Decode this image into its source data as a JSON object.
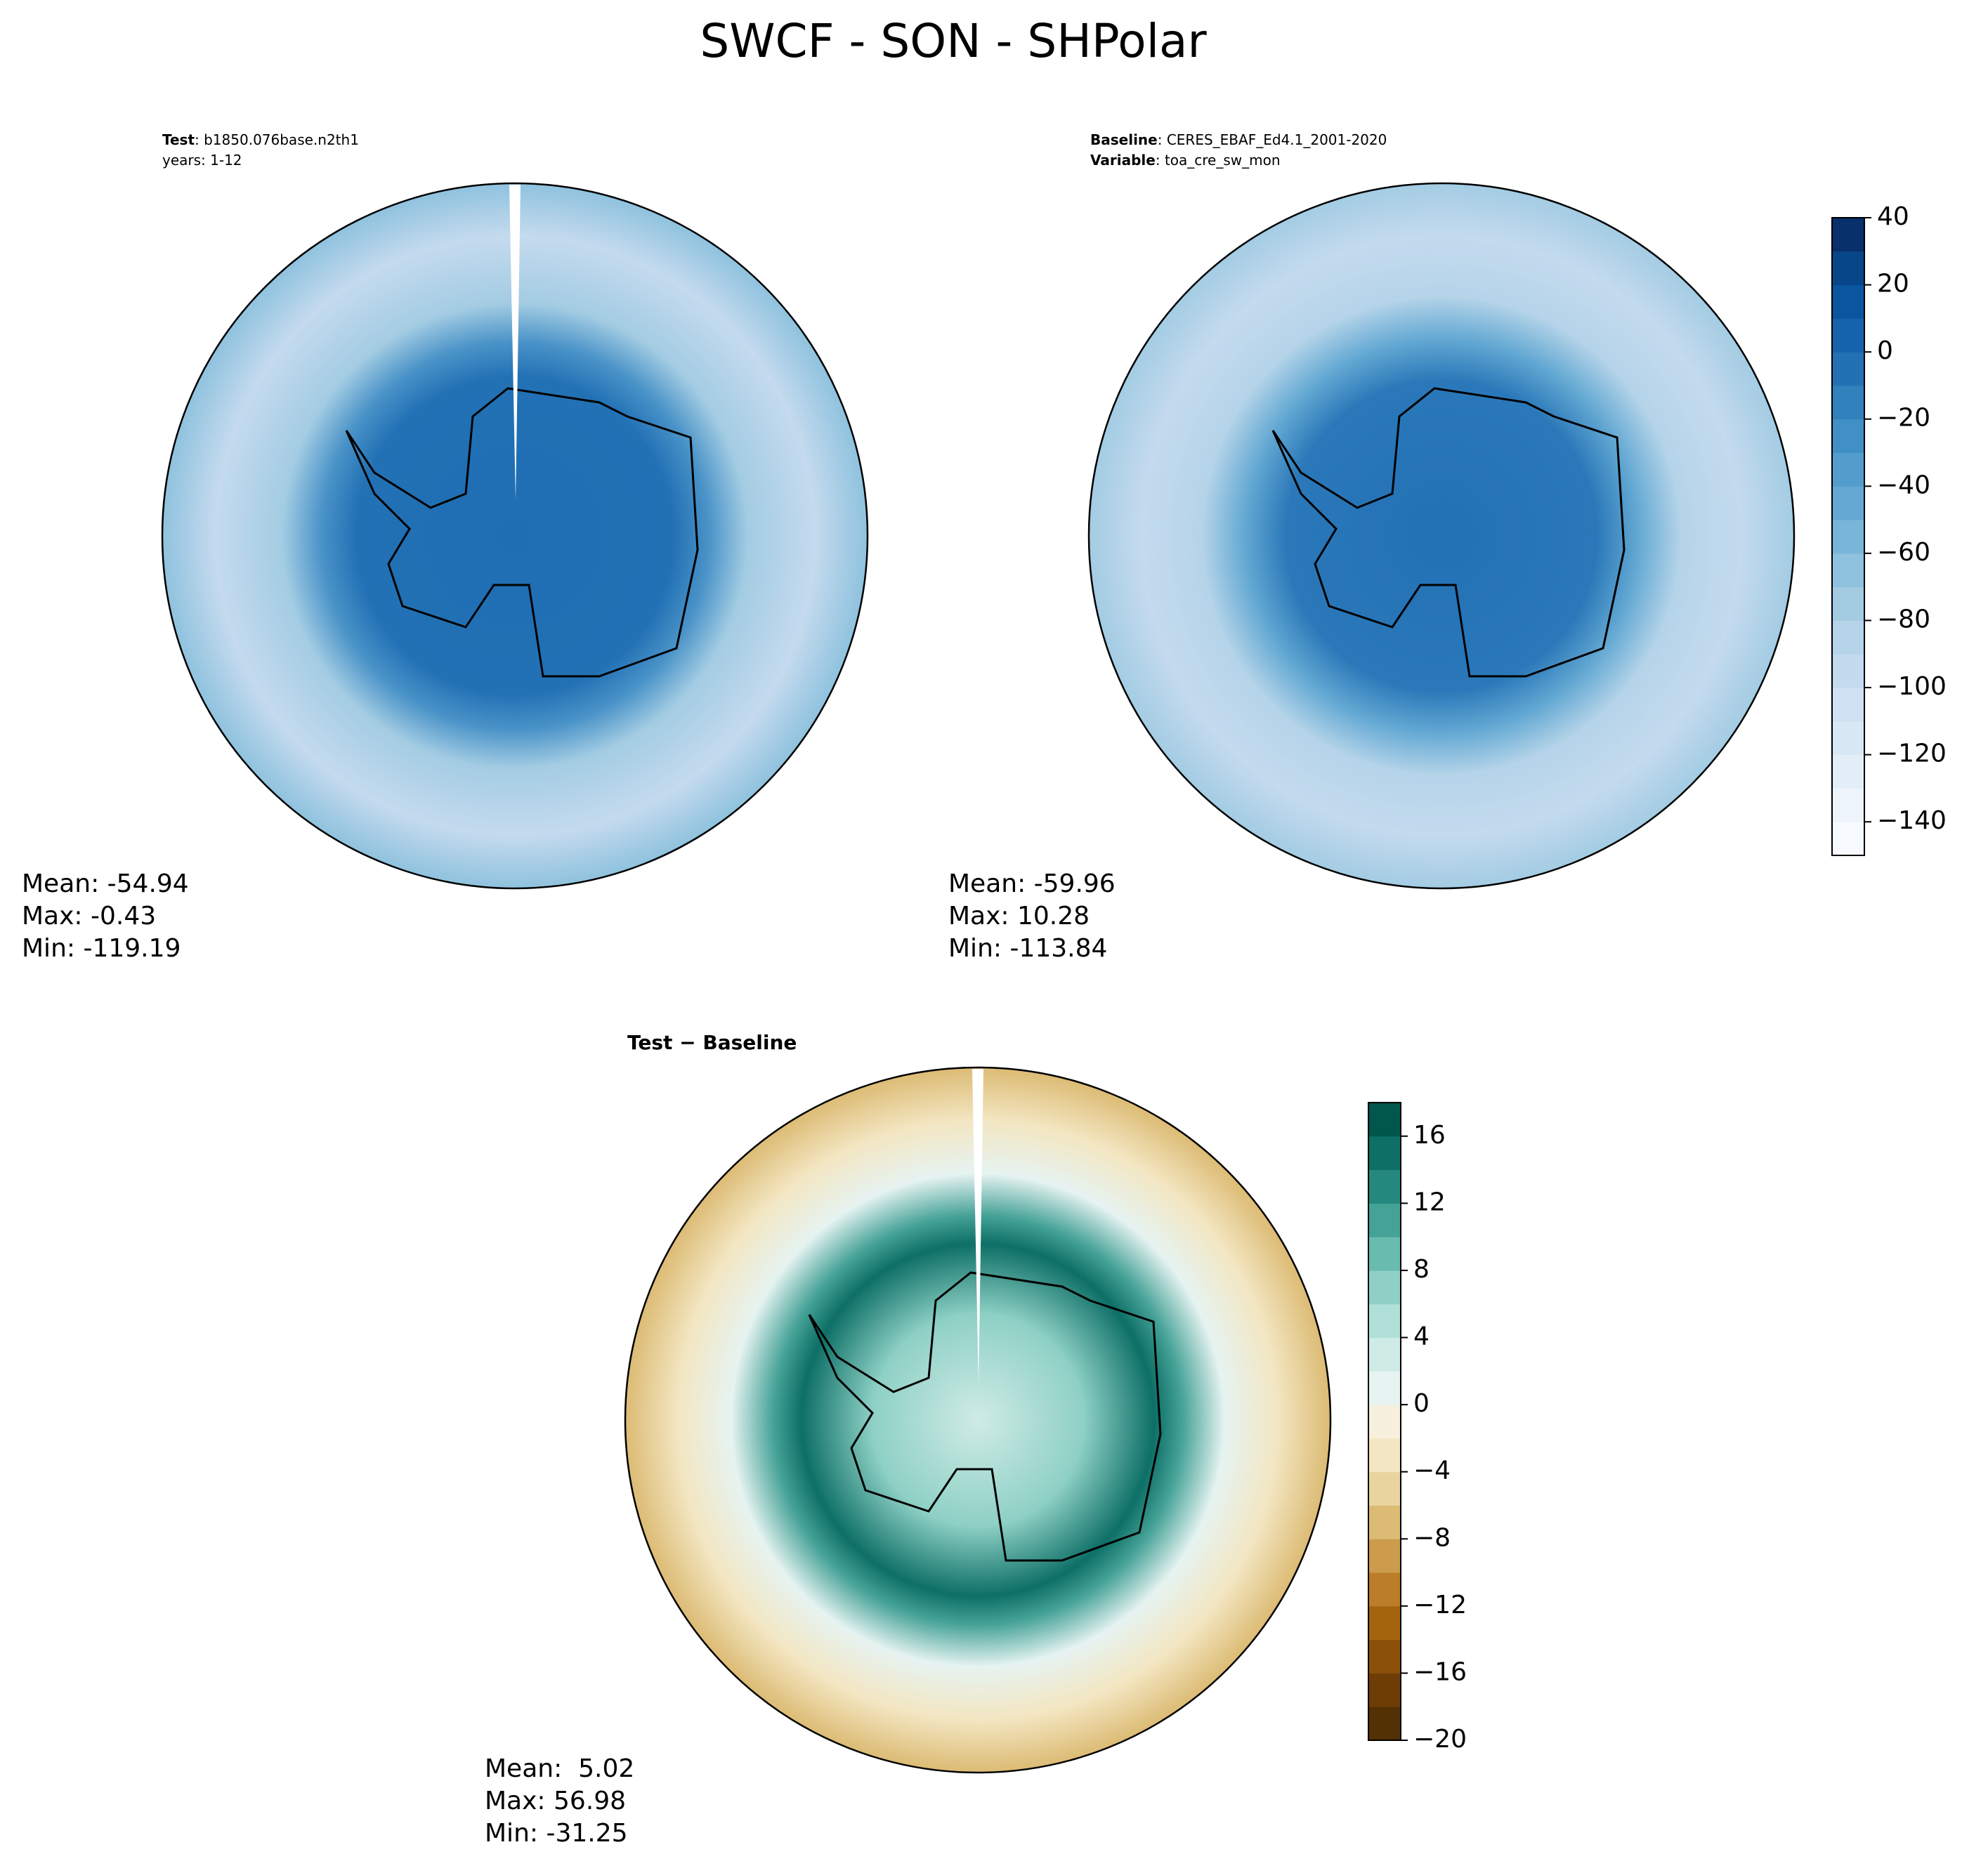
{
  "chart_data": {
    "type": "polar-contour",
    "title": "SWCF - SON - SHPolar",
    "panels": [
      {
        "header": [
          {
            "bold": "Test",
            "text": ": b1850.076base.n2th1"
          },
          {
            "text": "years: 1-12"
          }
        ],
        "stats": [
          "Mean: -54.94",
          "Max: -0.43",
          "Min: -119.19"
        ],
        "colorbar": 0
      },
      {
        "header": [
          {
            "bold": "Baseline",
            "text": ": CERES_EBAF_Ed4.1_2001-2020"
          },
          {
            "bold": "Variable",
            "text": ": toa_cre_sw_mon"
          }
        ],
        "stats": [
          "Mean: -59.96",
          "Max: 10.28",
          "Min: -113.84"
        ],
        "colorbar": 0
      },
      {
        "header": [
          {
            "bold": "Test − Baseline"
          }
        ],
        "stats": [
          "Mean:  5.02",
          "Max: 56.98",
          "Min: -31.25"
        ],
        "colorbar": 1
      }
    ],
    "colorbars": [
      {
        "zlim": [
          -150,
          40
        ],
        "ticks": [
          40,
          20,
          0,
          {
            "value": -20,
            "label": "−20"
          },
          {
            "value": -40,
            "label": "−40"
          },
          {
            "value": -60,
            "label": "−60"
          },
          {
            "value": -80,
            "label": "−80"
          },
          {
            "value": -100,
            "label": "−100"
          },
          {
            "value": -120,
            "label": "−120"
          },
          {
            "value": -140,
            "label": "−140"
          }
        ],
        "colors": [
          "#f7fbff",
          "#edf4fc",
          "#e3eef9",
          "#d9e8f5",
          "#cfe1f2",
          "#c4daee",
          "#b5d4e9",
          "#a3cce3",
          "#8fc2de",
          "#79b5d9",
          "#64a9d3",
          "#529dcc",
          "#4090c5",
          "#3181bd",
          "#2271b5",
          "#1563aa",
          "#0b559f",
          "#08468a",
          "#08306b"
        ]
      },
      {
        "zlim": [
          -20,
          18
        ],
        "ticks": [
          16,
          12,
          8,
          4,
          0,
          {
            "value": -4,
            "label": "−4"
          },
          {
            "value": -8,
            "label": "−8"
          },
          {
            "value": -12,
            "label": "−12"
          },
          {
            "value": -16,
            "label": "−16"
          },
          {
            "value": -20,
            "label": "−20"
          }
        ],
        "colors": [
          "#543005",
          "#6e3d06",
          "#8a500a",
          "#a4640e",
          "#bb7d28",
          "#cc9c4c",
          "#dcbb74",
          "#e9d49f",
          "#f3e6c2",
          "#f6f0dc",
          "#e6f3f1",
          "#cfebe6",
          "#b0e0d8",
          "#8ed0c5",
          "#68bcaf",
          "#45a297",
          "#25887f",
          "#0d6f66",
          "#01574b"
        ]
      }
    ]
  }
}
